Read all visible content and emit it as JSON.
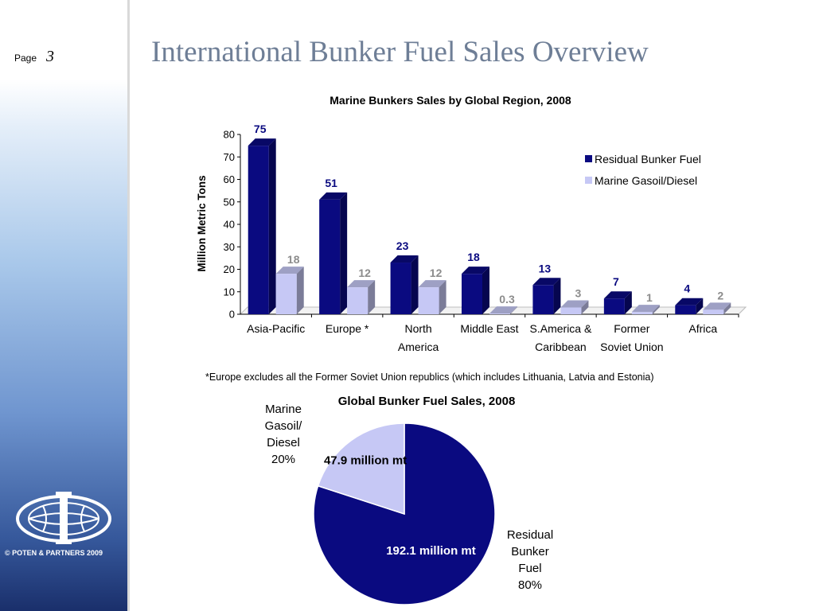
{
  "page": {
    "label": "Page",
    "number": "3"
  },
  "title": "International Bunker Fuel Sales Overview",
  "footer": {
    "copyright": "© POTEN & PARTNERS 2009"
  },
  "colors": {
    "residual": "#0a0a80",
    "gasoil": "#c6c8f5",
    "title": "#6e7e96",
    "gasoil_label": "#8c8c8c"
  },
  "footnote": "*Europe excludes all the Former Soviet Union republics (which includes Lithuania, Latvia and Estonia)",
  "pie_labels": {
    "gasoil": [
      "Marine",
      "Gasoil/",
      "Diesel",
      "20%"
    ],
    "residual": [
      "Residual",
      "Bunker",
      "Fuel",
      "80%"
    ]
  },
  "chart_data": [
    {
      "type": "bar",
      "title": "Marine Bunkers Sales by Global Region, 2008",
      "ylabel": "Million Metric Tons",
      "xlabel": "",
      "ylim": [
        0,
        80
      ],
      "yticks": [
        0,
        10,
        20,
        30,
        40,
        50,
        60,
        70,
        80
      ],
      "grid": false,
      "legend": "top-right",
      "categories": [
        [
          "Asia-Pacific"
        ],
        [
          "Europe *"
        ],
        [
          "North",
          "America"
        ],
        [
          "Middle East"
        ],
        [
          "S.America &",
          "Caribbean"
        ],
        [
          "Former",
          "Soviet Union"
        ],
        [
          "Africa"
        ]
      ],
      "series": [
        {
          "name": "Residual Bunker Fuel",
          "values": [
            75,
            51,
            23,
            18,
            13,
            7,
            4
          ],
          "labels": [
            "75",
            "51",
            "23",
            "18",
            "13",
            "7",
            "4"
          ]
        },
        {
          "name": "Marine Gasoil/Diesel",
          "values": [
            18,
            12,
            12,
            0.3,
            3,
            1,
            2
          ],
          "labels": [
            "18",
            "12",
            "12",
            "0.3",
            "3",
            "1",
            "2"
          ]
        }
      ]
    },
    {
      "type": "pie",
      "title": "Global Bunker Fuel Sales, 2008",
      "slices": [
        {
          "name": "Residual Bunker Fuel",
          "value": 80,
          "label": "192.1 million mt"
        },
        {
          "name": "Marine Gasoil/Diesel",
          "value": 20,
          "label": "47.9 million mt"
        }
      ]
    }
  ]
}
